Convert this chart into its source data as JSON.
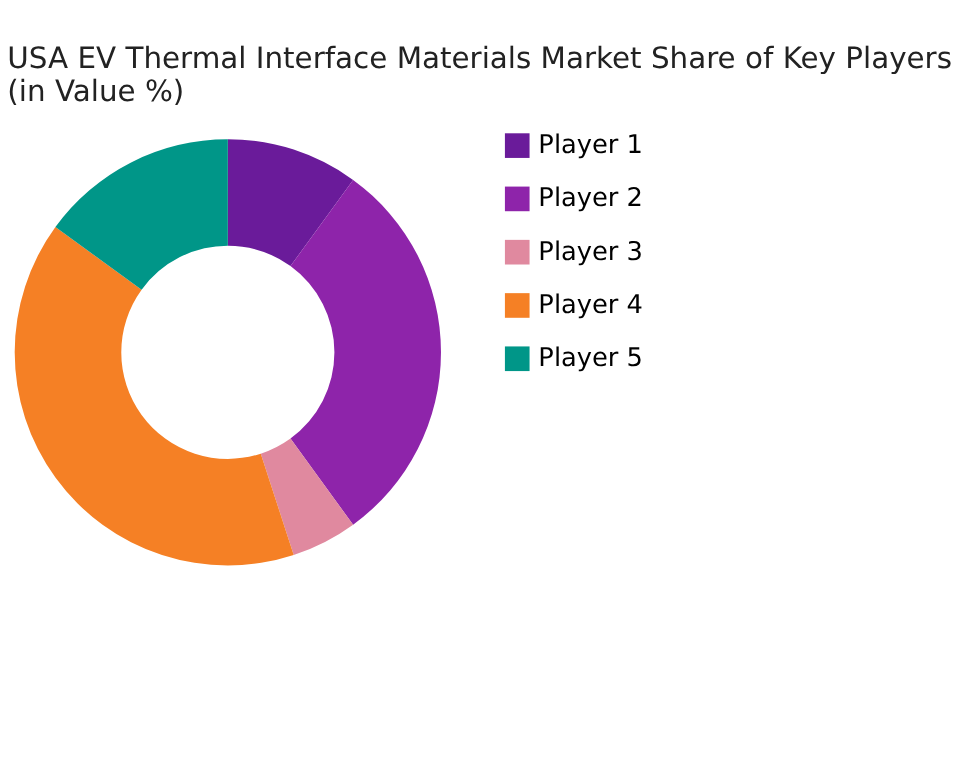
{
  "chart_data": {
    "type": "donut",
    "title": "USA EV Thermal Interface Materials Market Share of Key Players (in Value %)",
    "categories": [
      "Player 1",
      "Player 2",
      "Player 3",
      "Player 4",
      "Player 5"
    ],
    "values": [
      10,
      30,
      5,
      40,
      15
    ],
    "colors": [
      "#6a1b9a",
      "#8e24aa",
      "#e0899f",
      "#f58025",
      "#009688"
    ],
    "legend": "right"
  }
}
